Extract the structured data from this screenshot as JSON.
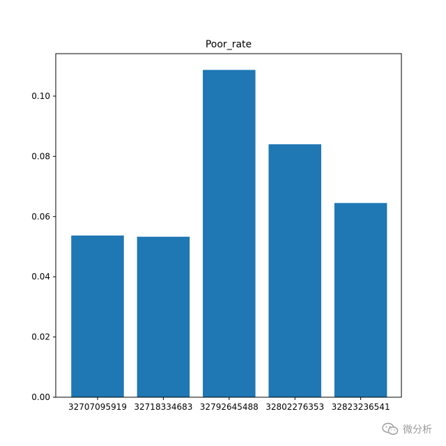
{
  "chart_data": {
    "type": "bar",
    "title": "Poor_rate",
    "xlabel": "",
    "ylabel": "",
    "categories": [
      "32707095919",
      "32718334683",
      "32792645488",
      "32802276353",
      "32823236541"
    ],
    "values": [
      0.0537,
      0.0533,
      0.1087,
      0.084,
      0.0645
    ],
    "ylim": [
      0,
      0.1141
    ],
    "yticks": [
      0.0,
      0.02,
      0.04,
      0.06,
      0.08,
      0.1
    ],
    "ytick_labels": [
      "0.00",
      "0.02",
      "0.04",
      "0.06",
      "0.08",
      "0.10"
    ],
    "grid": false,
    "legend": "none",
    "bar_color": "#1f77b4"
  },
  "watermark": {
    "icon": "wechat-icon",
    "text": "微分析"
  }
}
